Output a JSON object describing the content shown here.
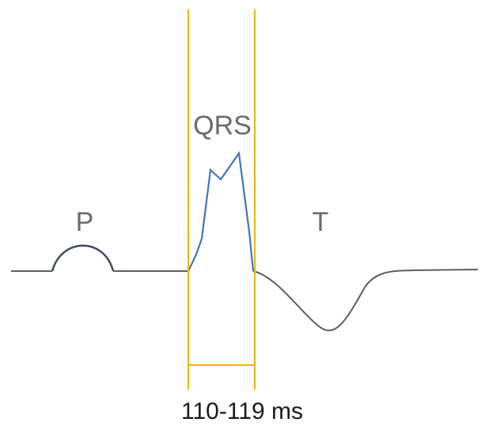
{
  "labels": {
    "p_wave": "P",
    "qrs_complex": "QRS",
    "t_wave": "T",
    "qrs_duration": "110-119 ms"
  },
  "colors": {
    "baseline": "#5f5f5f",
    "qrs_trace": "#4472c4",
    "interval_markers": "#f4b400",
    "label_text": "#6b6b6b",
    "duration_text": "#1a1a1a"
  }
}
